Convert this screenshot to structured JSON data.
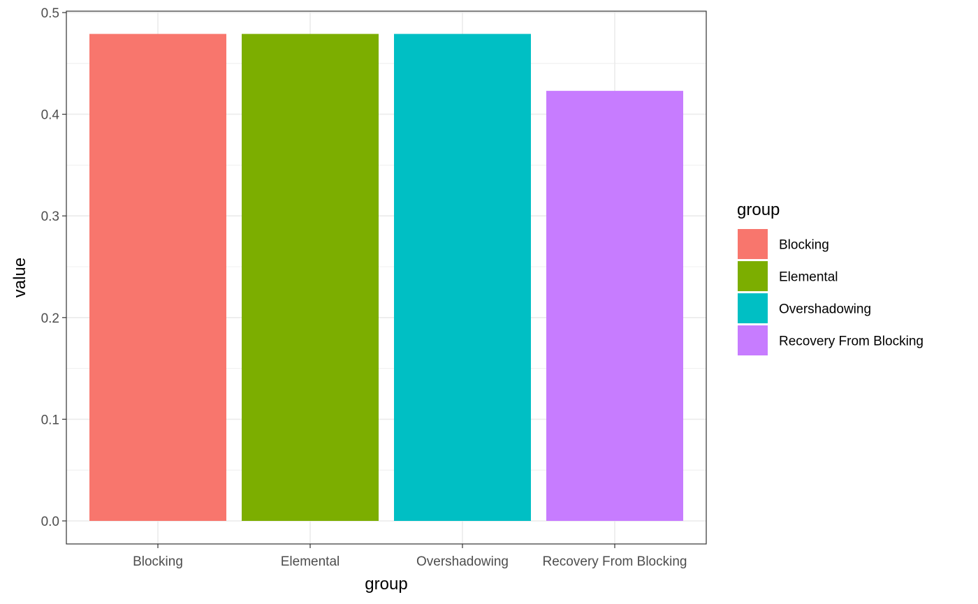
{
  "chart_data": {
    "type": "bar",
    "categories": [
      "Blocking",
      "Elemental",
      "Overshadowing",
      "Recovery From Blocking"
    ],
    "values": [
      0.479,
      0.479,
      0.479,
      0.423
    ],
    "colors": [
      "#F8766D",
      "#7CAE00",
      "#00BFC4",
      "#C77CFF"
    ],
    "xlabel": "group",
    "ylabel": "value",
    "ylim": [
      0,
      0.5
    ],
    "yticks": [
      "0.0",
      "0.1",
      "0.2",
      "0.3",
      "0.4",
      "0.5"
    ],
    "yminor": [
      0.05,
      0.15,
      0.25,
      0.35,
      0.45
    ],
    "grid": true,
    "theme": "bw",
    "legend": {
      "title": "group",
      "position": "right",
      "entries": [
        "Blocking",
        "Elemental",
        "Overshadowing",
        "Recovery From Blocking"
      ]
    }
  }
}
